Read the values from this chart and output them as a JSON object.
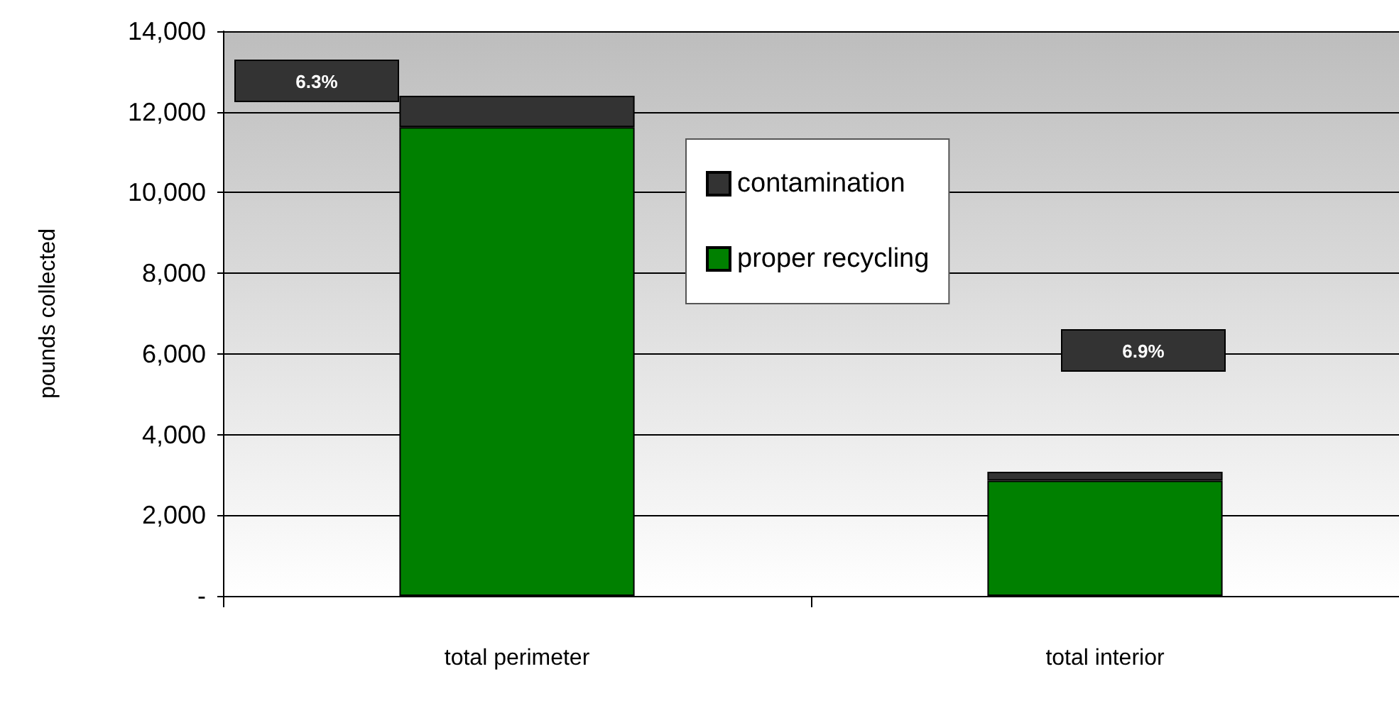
{
  "chart_data": {
    "type": "bar",
    "ylabel": "pounds collected",
    "categories": [
      "total perimeter",
      "total interior"
    ],
    "stacked": true,
    "series": [
      {
        "name": "proper recycling",
        "color": "#008000",
        "values": [
          11620,
          2860
        ]
      },
      {
        "name": "contamination",
        "color": "#333333",
        "values": [
          780,
          220
        ]
      }
    ],
    "annotations": [
      "6.3%",
      "6.9%"
    ],
    "ylim": [
      0,
      14000
    ],
    "yticks": [
      {
        "value": 0,
        "label": "-"
      },
      {
        "value": 2000,
        "label": "2,000"
      },
      {
        "value": 4000,
        "label": "4,000"
      },
      {
        "value": 6000,
        "label": "6,000"
      },
      {
        "value": 8000,
        "label": "8,000"
      },
      {
        "value": 10000,
        "label": "10,000"
      },
      {
        "value": 12000,
        "label": "12,000"
      },
      {
        "value": 14000,
        "label": "14,000"
      }
    ],
    "grid": "y",
    "legend": "top right"
  }
}
